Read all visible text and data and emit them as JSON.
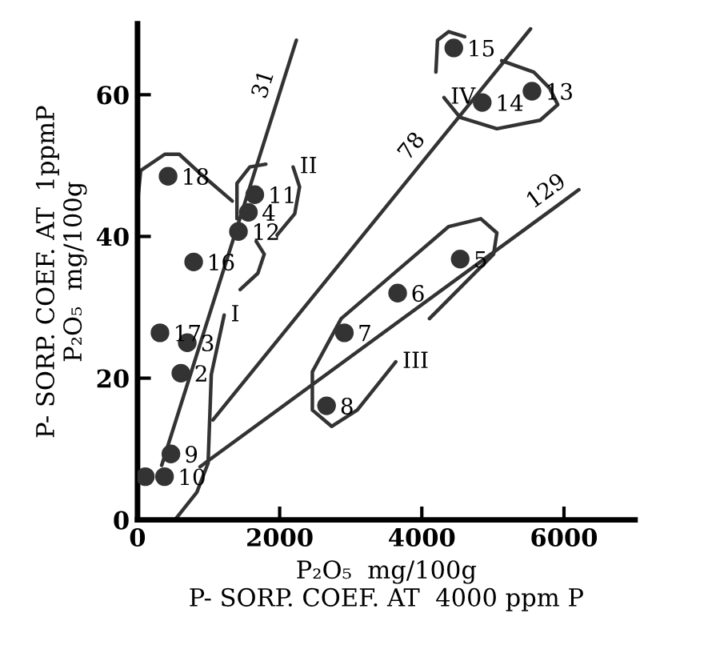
{
  "chart_data": {
    "type": "scatter",
    "xlabel": "P₂O₅  mg/100g\nP- SORP. COEF. AT  4000 ppm P",
    "ylabel": "P- SORP. COEF. AT  1ppmP\nP₂O₅  mg/100g",
    "xlim": [
      0,
      7000
    ],
    "ylim": [
      0,
      70
    ],
    "xticks": [
      0,
      2000,
      4000,
      6000
    ],
    "yticks": [
      0,
      20,
      40,
      60
    ],
    "grid": false,
    "legend": false,
    "series": [
      {
        "marker": "circle",
        "color": "#333333",
        "x": [
          430,
          790,
          316,
          700,
          610,
          470,
          110,
          380,
          1420,
          1560,
          1650,
          2910,
          2660,
          3660,
          4540,
          4450,
          4850,
          5550
        ],
        "values": [
          48.5,
          36.4,
          26.4,
          25,
          20.7,
          9.3,
          6.1,
          6.1,
          40.7,
          43.4,
          45.9,
          26.4,
          16.1,
          32,
          36.8,
          66.6,
          58.9,
          60.5
        ]
      },
      {
        "type": "line",
        "name": "31",
        "color": "#333333",
        "x": [
          340,
          2014,
          2235
        ],
        "values": [
          7.7,
          60.7,
          67.7
        ]
      },
      {
        "type": "line",
        "name": "78",
        "color": "#333333",
        "x": [
          1060,
          4056,
          5530
        ],
        "values": [
          14.1,
          51.1,
          69.3
        ]
      },
      {
        "type": "line",
        "name": "129",
        "color": "#333333",
        "x": [
          880,
          5900,
          6210
        ],
        "values": [
          7.5,
          44.3,
          46.6
        ]
      },
      {
        "type": "line",
        "name": "I",
        "color": "#333333",
        "x": [
          1219,
          1038,
          993,
          835,
          542,
          null,
          0,
          45,
          384,
          587,
          880,
          1332
        ],
        "values": [
          28.9,
          20.5,
          8.0,
          3.9,
          0.2,
          null,
          44.8,
          49.3,
          51.6,
          51.6,
          48.9,
          45.0
        ]
      },
      {
        "type": "line",
        "name": "II",
        "color": "#333333",
        "x": [
          2189,
          2280,
          2212,
          1964,
          null,
          1399,
          1399,
          1580,
          1806,
          null,
          1670,
          1783,
          1693,
          1444
        ],
        "values": [
          49.8,
          47.0,
          43.2,
          40.2,
          null,
          42.5,
          47.5,
          49.8,
          50.2,
          null,
          39.3,
          37.5,
          34.8,
          32.5
        ]
      },
      {
        "type": "line",
        "name": "III",
        "color": "#333333",
        "x": [
          3634,
          3092,
          2731,
          2460,
          2460,
          2866,
          4379,
          4830,
          5056,
          5010,
          4108
        ],
        "values": [
          22.3,
          15.5,
          13.2,
          15.5,
          20.9,
          28.4,
          41.4,
          42.5,
          40.5,
          37.5,
          28.4
        ]
      },
      {
        "type": "line",
        "name": "IV",
        "color": "#333333",
        "x": [
          4311,
          4537,
          5056,
          5665,
          5913,
          5800,
          5575,
          5123,
          null,
          4198,
          4221,
          4379,
          4604
        ],
        "values": [
          59.6,
          56.8,
          55.2,
          56.4,
          58.6,
          60.9,
          63.2,
          64.8,
          null,
          63.2,
          67.7,
          68.9,
          68.2
        ]
      }
    ],
    "annotations": [
      {
        "text": "18",
        "x": 430,
        "y": 48.5
      },
      {
        "text": "16",
        "x": 790,
        "y": 36.4
      },
      {
        "text": "17",
        "x": 316,
        "y": 26.4
      },
      {
        "text": "3",
        "x": 700,
        "y": 25
      },
      {
        "text": "2",
        "x": 610,
        "y": 20.7
      },
      {
        "text": "9",
        "x": 470,
        "y": 9.3
      },
      {
        "text": "10",
        "x": 380,
        "y": 6.1
      },
      {
        "text": "12",
        "x": 1420,
        "y": 40.7
      },
      {
        "text": "4",
        "x": 1560,
        "y": 43.4
      },
      {
        "text": "11",
        "x": 1650,
        "y": 45.9
      },
      {
        "text": "7",
        "x": 2910,
        "y": 26.4
      },
      {
        "text": "8",
        "x": 2660,
        "y": 16.1
      },
      {
        "text": "6",
        "x": 3660,
        "y": 32
      },
      {
        "text": "5",
        "x": 4540,
        "y": 36.8
      },
      {
        "text": "15",
        "x": 4450,
        "y": 66.6
      },
      {
        "text": "14",
        "x": 4850,
        "y": 58.9
      },
      {
        "text": "13",
        "x": 5550,
        "y": 60.5
      }
    ]
  }
}
